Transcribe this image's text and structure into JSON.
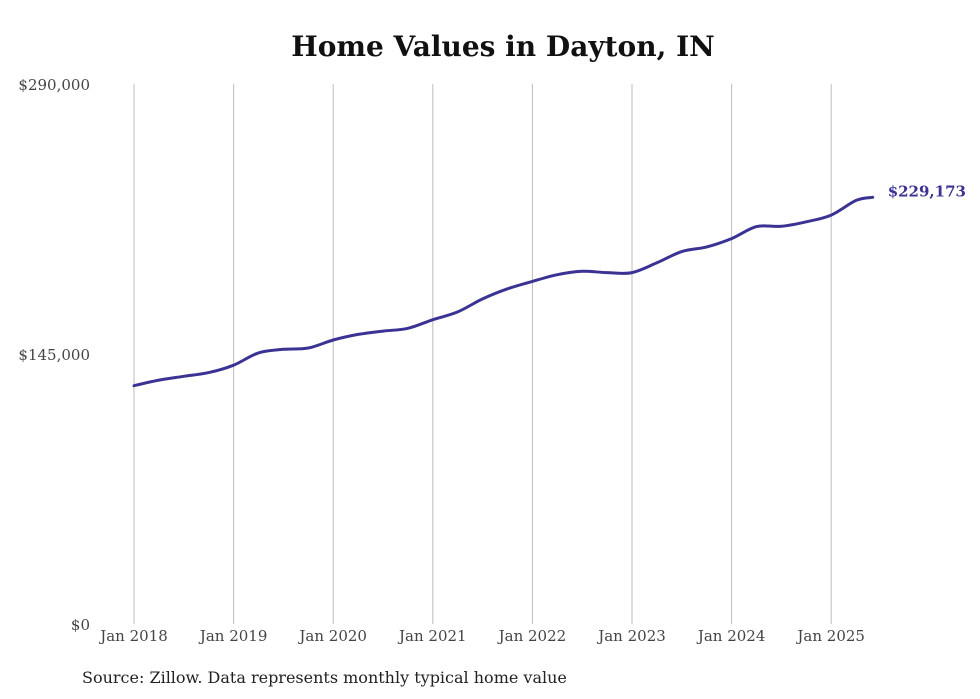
{
  "chart_data": {
    "type": "line",
    "title": "Home Values in Dayton, IN",
    "xlabel": "",
    "ylabel": "",
    "ylim": [
      0,
      290000
    ],
    "yticks": [
      {
        "value": 0,
        "label": "$0"
      },
      {
        "value": 145000,
        "label": "$145,000"
      },
      {
        "value": 290000,
        "label": "$290,000"
      }
    ],
    "xticks": [
      {
        "value": "2018-01",
        "label": "Jan 2018"
      },
      {
        "value": "2019-01",
        "label": "Jan 2019"
      },
      {
        "value": "2020-01",
        "label": "Jan 2020"
      },
      {
        "value": "2021-01",
        "label": "Jan 2021"
      },
      {
        "value": "2022-01",
        "label": "Jan 2022"
      },
      {
        "value": "2023-01",
        "label": "Jan 2023"
      },
      {
        "value": "2024-01",
        "label": "Jan 2024"
      },
      {
        "value": "2025-01",
        "label": "Jan 2025"
      }
    ],
    "grid": {
      "vertical": true,
      "horizontal": false
    },
    "line_color": "#3b3394",
    "end_label": "$229,173",
    "series": [
      {
        "x": [
          "2018-01",
          "2018-04",
          "2018-07",
          "2018-10",
          "2019-01",
          "2019-04",
          "2019-07",
          "2019-10",
          "2020-01",
          "2020-04",
          "2020-07",
          "2020-10",
          "2021-01",
          "2021-04",
          "2021-07",
          "2021-10",
          "2022-01",
          "2022-04",
          "2022-07",
          "2022-10",
          "2023-01",
          "2023-04",
          "2023-07",
          "2023-10",
          "2024-01",
          "2024-04",
          "2024-07",
          "2024-10",
          "2025-01",
          "2025-04",
          "2025-06"
        ],
        "values": [
          128000,
          131000,
          133000,
          135000,
          139000,
          145600,
          147500,
          148200,
          152500,
          155500,
          157300,
          158800,
          163400,
          167600,
          174600,
          180000,
          184000,
          187600,
          189400,
          188700,
          188700,
          194000,
          200000,
          202500,
          207000,
          213400,
          213600,
          216000,
          219600,
          227500,
          229173
        ]
      }
    ]
  },
  "footer": {
    "source": "Source: Zillow. Data represents monthly typical home value"
  }
}
